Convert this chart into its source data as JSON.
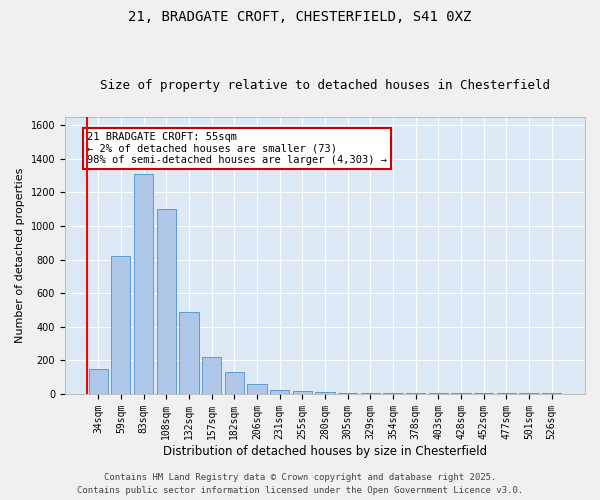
{
  "title1": "21, BRADGATE CROFT, CHESTERFIELD, S41 0XZ",
  "title2": "Size of property relative to detached houses in Chesterfield",
  "xlabel": "Distribution of detached houses by size in Chesterfield",
  "ylabel": "Number of detached properties",
  "categories": [
    "34sqm",
    "59sqm",
    "83sqm",
    "108sqm",
    "132sqm",
    "157sqm",
    "182sqm",
    "206sqm",
    "231sqm",
    "255sqm",
    "280sqm",
    "305sqm",
    "329sqm",
    "354sqm",
    "378sqm",
    "403sqm",
    "428sqm",
    "452sqm",
    "477sqm",
    "501sqm",
    "526sqm"
  ],
  "values": [
    150,
    820,
    1310,
    1100,
    490,
    220,
    130,
    60,
    25,
    20,
    10,
    8,
    5,
    5,
    5,
    5,
    5,
    5,
    5,
    5,
    5
  ],
  "bar_color": "#aec6e8",
  "bar_edge_color": "#5b9bd5",
  "background_color": "#dde8f5",
  "grid_color": "#ffffff",
  "red_line_x": -0.5,
  "annotation_text": "21 BRADGATE CROFT: 55sqm\n← 2% of detached houses are smaller (73)\n98% of semi-detached houses are larger (4,303) →",
  "annotation_box_color": "#ffffff",
  "annotation_box_edge_color": "#cc0000",
  "footer1": "Contains HM Land Registry data © Crown copyright and database right 2025.",
  "footer2": "Contains public sector information licensed under the Open Government Licence v3.0.",
  "ylim": [
    0,
    1650
  ],
  "yticks": [
    0,
    200,
    400,
    600,
    800,
    1000,
    1200,
    1400,
    1600
  ],
  "title1_fontsize": 10,
  "title2_fontsize": 9,
  "xlabel_fontsize": 8.5,
  "ylabel_fontsize": 8,
  "tick_fontsize": 7,
  "footer_fontsize": 6.5,
  "annotation_fontsize": 7.5
}
